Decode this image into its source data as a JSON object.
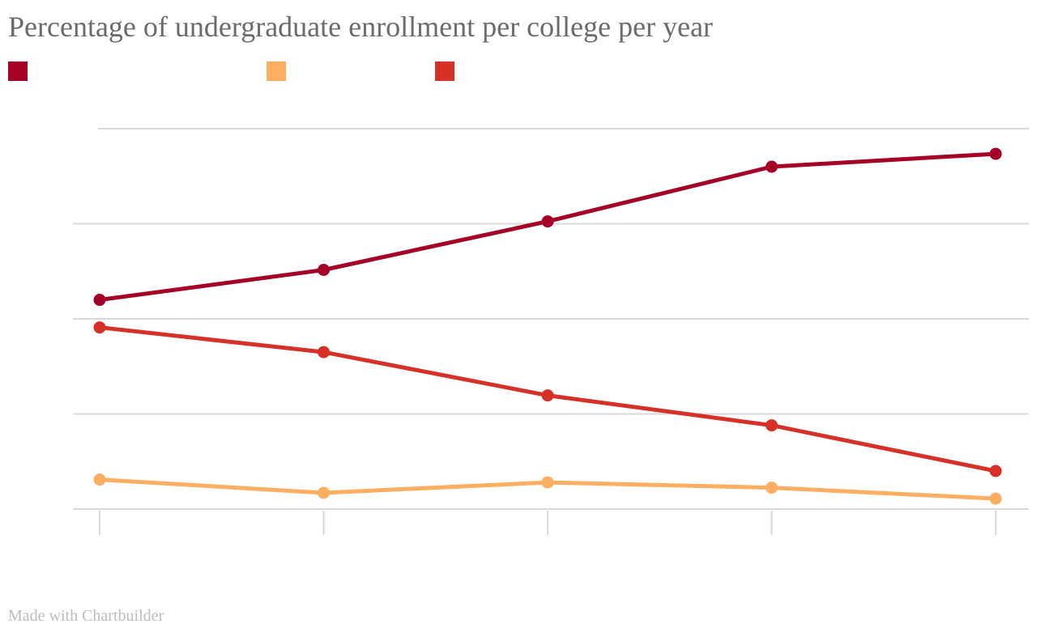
{
  "page": {
    "title": "Percentage of undergraduate enrollment per college per year",
    "credit": "Made with Chartbuilder"
  },
  "chart_data": {
    "type": "line",
    "title": "Percentage of undergraduate enrollment per college per year",
    "xlabel": "",
    "ylabel": "",
    "x": [
      1,
      2,
      3,
      4,
      5
    ],
    "ylim": [
      0,
      80
    ],
    "y_gridlines": [
      0,
      20,
      40,
      60,
      80
    ],
    "grid": true,
    "legend_placement": "top-left",
    "series": [
      {
        "name": "",
        "color": "#a50026",
        "values": [
          44,
          50.3,
          60.5,
          72,
          74.7
        ]
      },
      {
        "name": "",
        "color": "#fdae61",
        "values": [
          6.2,
          3.4,
          5.6,
          4.5,
          2.2
        ]
      },
      {
        "name": "",
        "color": "#d73027",
        "values": [
          38.2,
          33,
          23.9,
          17.6,
          8
        ]
      }
    ]
  }
}
